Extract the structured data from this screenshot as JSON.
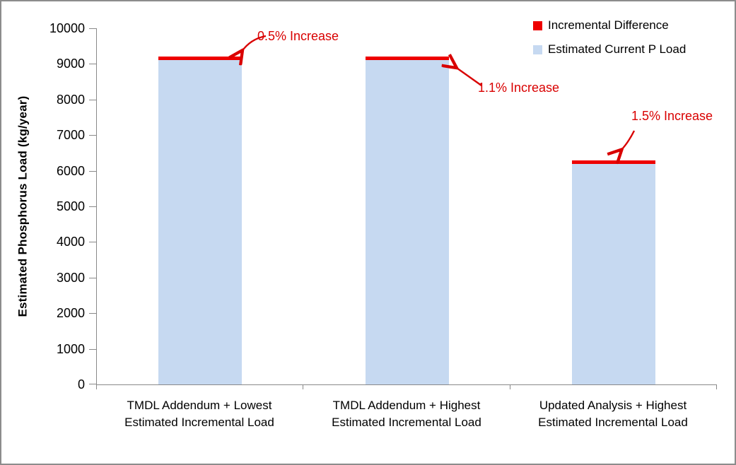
{
  "chart_data": {
    "type": "bar",
    "stacked": true,
    "title": "",
    "xlabel": "",
    "ylabel": "Estimated Phosphorus Load (kg/year)",
    "ylim": [
      0,
      10000
    ],
    "ytick_step": 1000,
    "yticks": [
      0,
      1000,
      2000,
      3000,
      4000,
      5000,
      6000,
      7000,
      8000,
      9000,
      10000
    ],
    "grid": false,
    "legend_position": "top-right",
    "categories": [
      "TMDL Addendum + Lowest Estimated Incremental Load",
      "TMDL Addendum + Highest Estimated Incremental Load",
      "Updated Analysis + Highest Estimated Incremental Load"
    ],
    "category_lines": [
      [
        "TMDL Addendum + Lowest",
        "Estimated Incremental Load"
      ],
      [
        "TMDL Addendum + Highest",
        "Estimated Incremental Load"
      ],
      [
        "Updated Analysis + Highest",
        "Estimated Incremental Load"
      ]
    ],
    "series": [
      {
        "name": "Estimated Current P Load",
        "color": "#C6D9F1",
        "values": [
          9100,
          9100,
          6200
        ]
      },
      {
        "name": "Incremental Difference",
        "color": "#EE0000",
        "values": [
          46,
          100,
          93
        ]
      }
    ],
    "annotations": [
      {
        "text": "0.5% Increase",
        "target_bar": 0
      },
      {
        "text": "1.1% Increase",
        "target_bar": 1
      },
      {
        "text": "1.5% Increase",
        "target_bar": 2
      }
    ]
  },
  "legend": {
    "items": [
      {
        "label": "Incremental Difference",
        "color": "#EE0000"
      },
      {
        "label": "Estimated Current P Load",
        "color": "#C6D9F1"
      }
    ]
  },
  "colors": {
    "bar_blue": "#C6D9F1",
    "series_red": "#EE0000",
    "annotation_red": "#D90000",
    "axis_gray": "#898989",
    "frame_gray": "#8C8C8C"
  }
}
